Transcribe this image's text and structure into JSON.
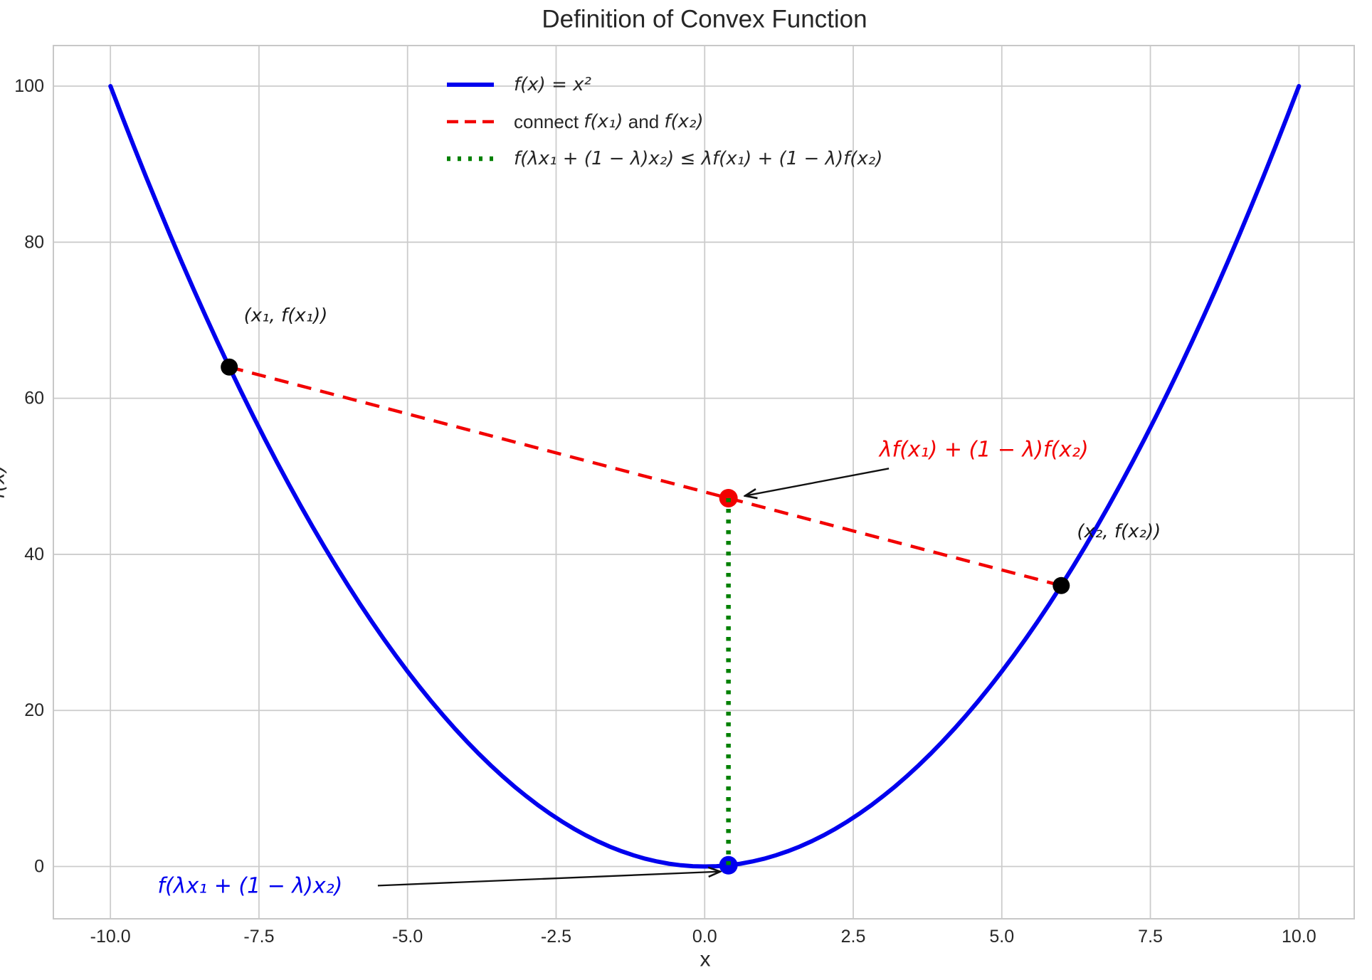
{
  "chart_data": {
    "type": "line",
    "title": "Definition of Convex Function",
    "xlabel": "x",
    "ylabel": "f(x)",
    "xlim": [
      -10.96,
      10.93
    ],
    "ylim": [
      -6.7,
      105.2
    ],
    "xticks": [
      -10.0,
      -7.5,
      -5.0,
      -2.5,
      0.0,
      2.5,
      5.0,
      7.5,
      10.0
    ],
    "xtick_labels": [
      "-10.0",
      "-7.5",
      "-5.0",
      "-2.5",
      "0.0",
      "2.5",
      "5.0",
      "7.5",
      "10.0"
    ],
    "yticks": [
      0,
      20,
      40,
      60,
      80,
      100
    ],
    "ytick_labels": [
      "0",
      "20",
      "40",
      "60",
      "80",
      "100"
    ],
    "grid": true,
    "legend_position": "upper center-left, frameless",
    "curve": {
      "name": "f(x) = x²",
      "fn": "x^2",
      "x_min": -10,
      "x_max": 10,
      "color": "#0000ee",
      "style": "solid"
    },
    "chord": {
      "name": "connect f(x₁) and f(x₂)",
      "color": "#f20000",
      "style": "dashed",
      "points": [
        [
          -8,
          64
        ],
        [
          6,
          36
        ]
      ]
    },
    "vertical": {
      "name": "f(λx₁ + (1 − λ)x₂) ≤ λf(x₁) + (1 − λ)f(x₂)",
      "color": "#008000",
      "style": "dotted",
      "points": [
        [
          0.4,
          47.2
        ],
        [
          0.4,
          0.16
        ]
      ]
    },
    "markers": [
      {
        "name": "point-x1",
        "x": -8,
        "y": 64,
        "color": "#000000",
        "r": 12
      },
      {
        "name": "point-x2",
        "x": 6,
        "y": 36,
        "color": "#000000",
        "r": 12
      },
      {
        "name": "point-chord-combination",
        "x": 0.4,
        "y": 47.2,
        "color": "#f20000",
        "r": 13
      },
      {
        "name": "point-function-at-combination",
        "x": 0.4,
        "y": 0.16,
        "color": "#0000ee",
        "r": 13
      }
    ],
    "annotations": [
      {
        "name": "label-point-x1",
        "text": "(x₁, f(x₁))",
        "color": "#1a1a1a",
        "x": -7.05,
        "y": 70.6,
        "size": 26
      },
      {
        "name": "label-point-x2",
        "text": "(x₂, f(x₂))",
        "color": "#1a1a1a",
        "x": 6.97,
        "y": 42.9,
        "size": 26
      },
      {
        "name": "label-chord-value",
        "text": "λf(x₁) + (1 − λ)f(x₂)",
        "color": "#f20000",
        "x": 4.7,
        "y": 53.4,
        "size": 30,
        "arrow": {
          "from": [
            3.1,
            51.0
          ],
          "to": [
            0.68,
            47.5
          ]
        }
      },
      {
        "name": "label-function-value",
        "text": "f(λx₁ + (1 − λ)x₂)",
        "color": "#0000ee",
        "x": -7.65,
        "y": -2.5,
        "size": 30,
        "arrow": {
          "from": [
            -5.5,
            -2.45
          ],
          "to": [
            0.26,
            -0.65
          ]
        }
      }
    ],
    "legend": [
      {
        "style": "solid",
        "color": "#0000ee",
        "parts": [
          {
            "t": "f(x) = x²",
            "italic": true
          }
        ]
      },
      {
        "style": "dashed",
        "color": "#f20000",
        "parts": [
          {
            "t": "connect ",
            "italic": false
          },
          {
            "t": "f(x₁)",
            "italic": true
          },
          {
            "t": " and ",
            "italic": false
          },
          {
            "t": "f(x₂)",
            "italic": true
          }
        ]
      },
      {
        "style": "dotted",
        "color": "#008000",
        "parts": [
          {
            "t": "f(λx₁ + (1 − λ)x₂) ≤ λf(x₁) + (1 − λ)f(x₂)",
            "italic": true
          }
        ]
      }
    ]
  },
  "colors": {
    "text": "#262626",
    "grid": "#cccccc",
    "frame": "#c8c8c8",
    "arrow": "#111111",
    "background": "#ffffff"
  }
}
